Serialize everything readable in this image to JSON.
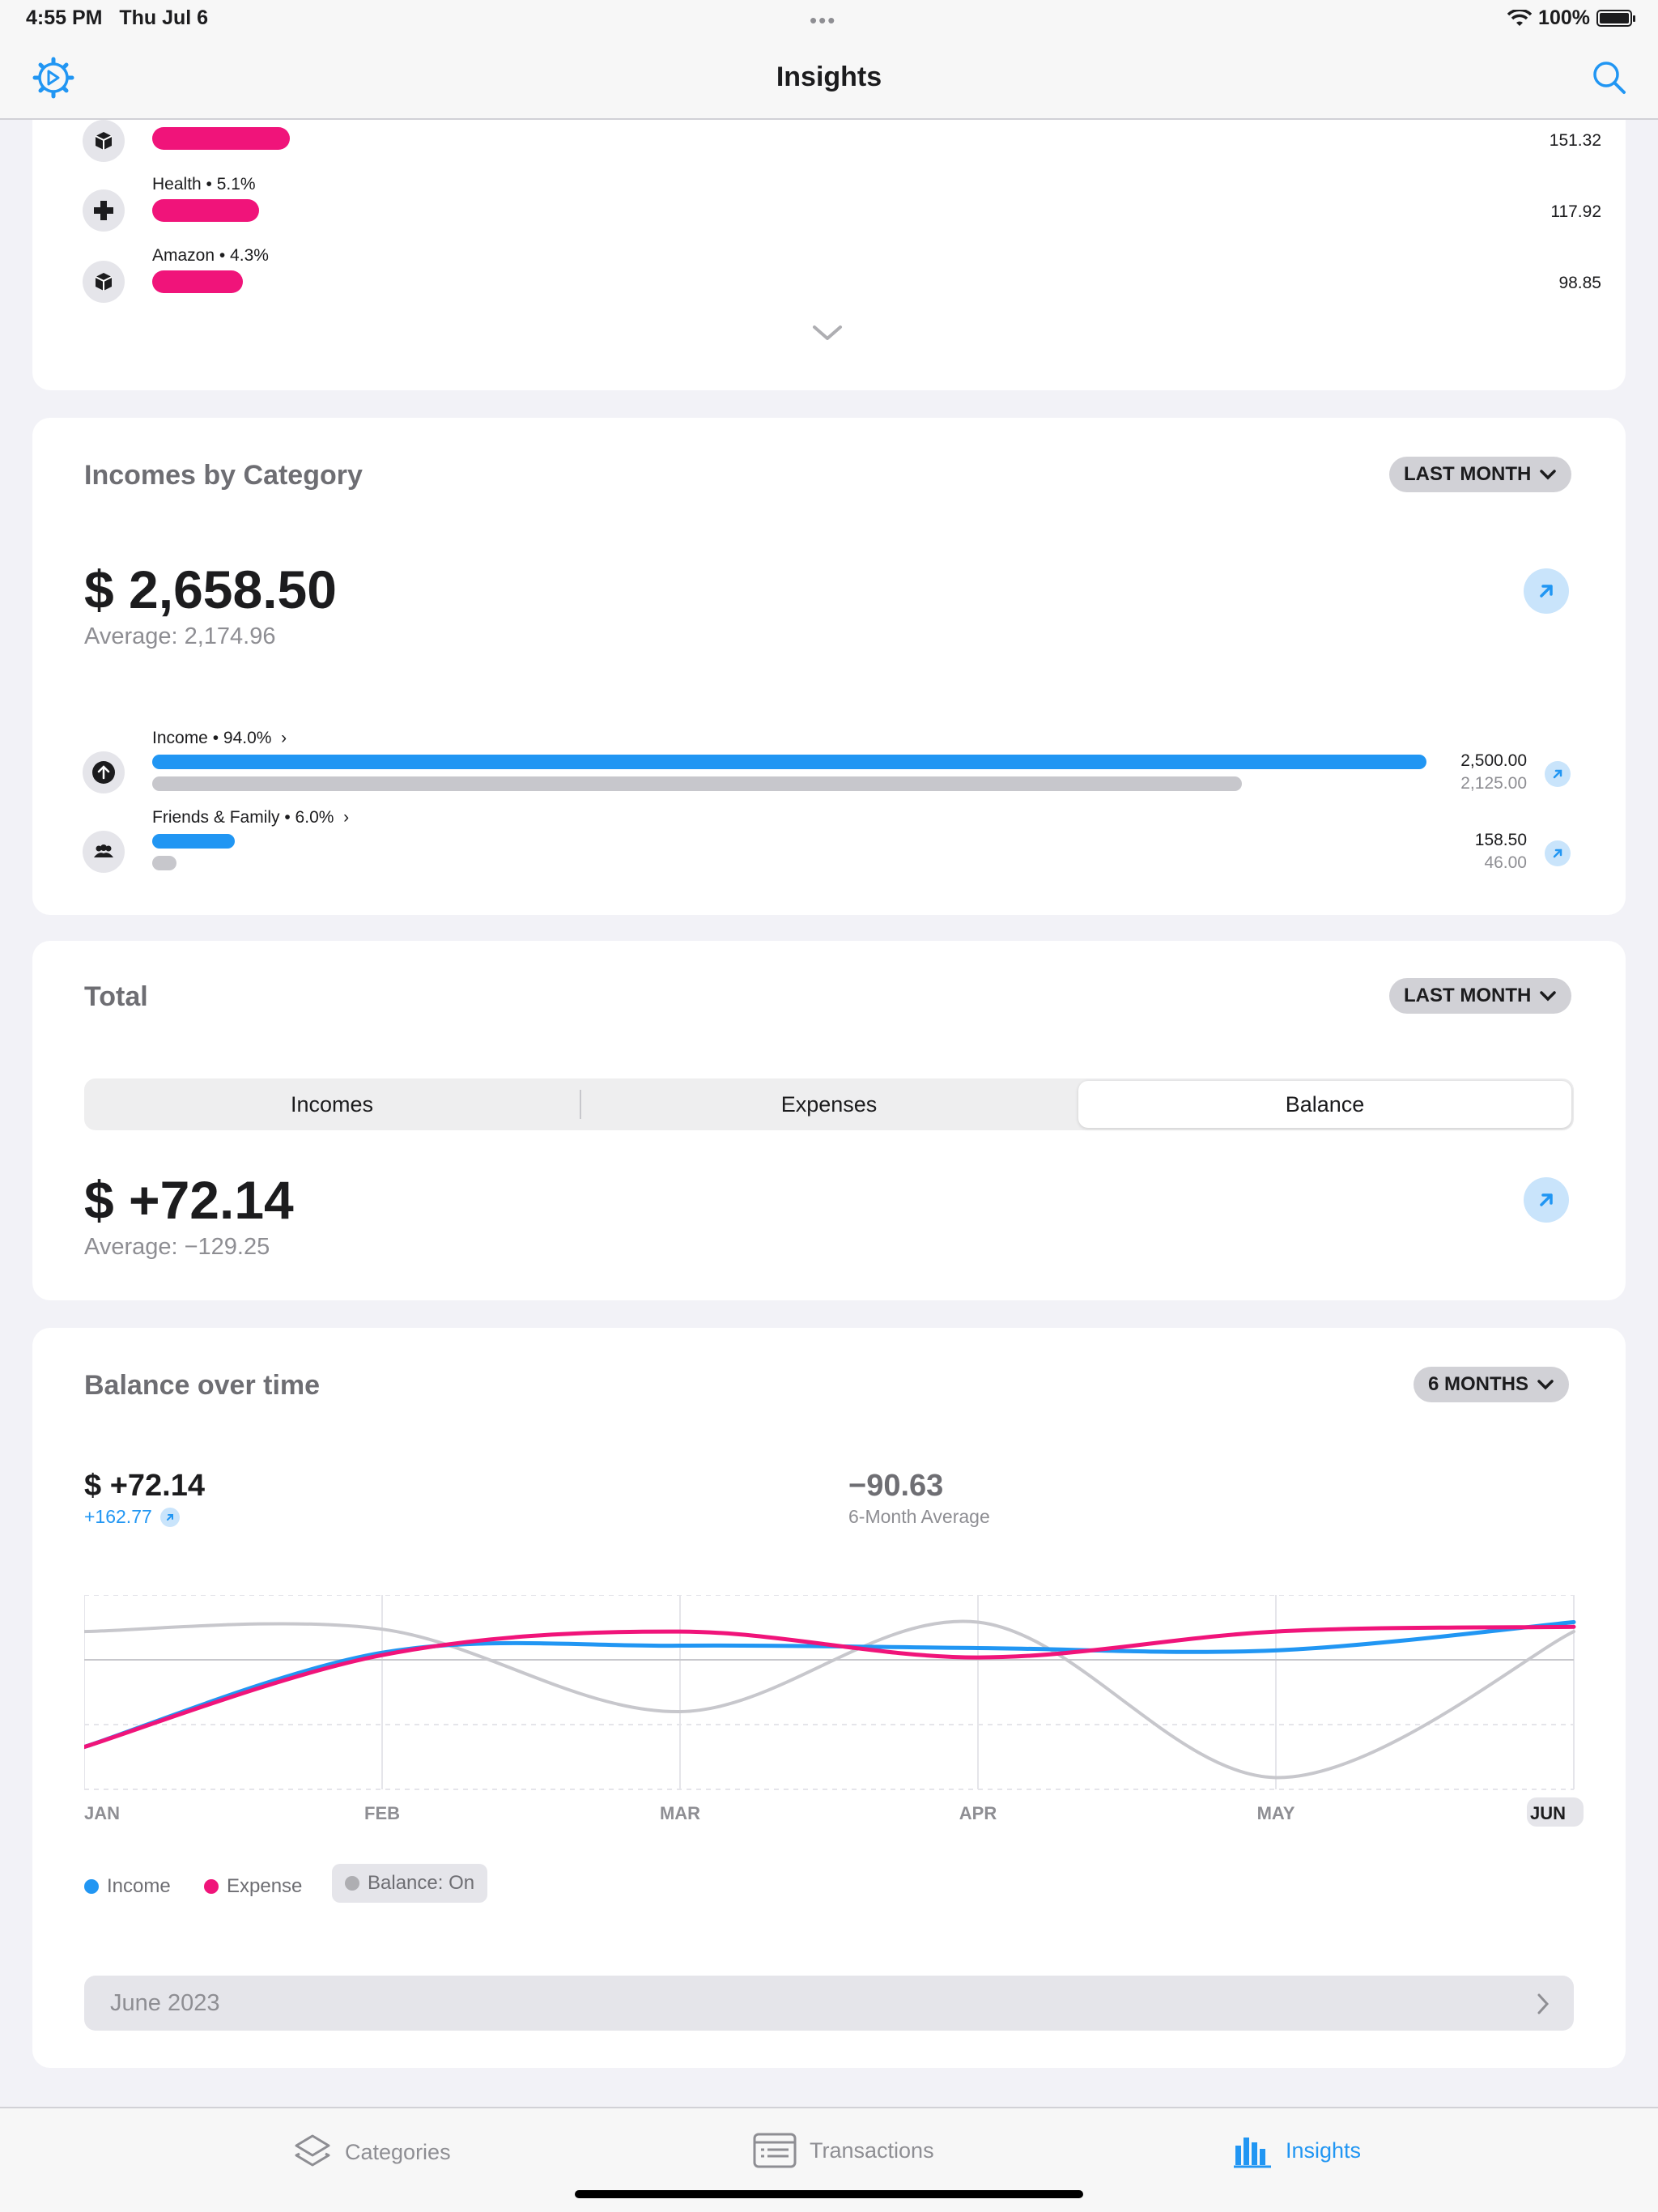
{
  "status_bar": {
    "time": "4:55 PM",
    "date": "Thu Jul 6",
    "dots": "•••",
    "battery": "100%"
  },
  "nav": {
    "title": "Insights",
    "left_icon": "settings-gear-icon",
    "right_icon": "search-icon"
  },
  "expense_list": {
    "rows": [
      {
        "label": "",
        "amount": "151.32",
        "icon": "package-icon",
        "fraction": 0.098
      },
      {
        "label": "Health • 5.1%",
        "amount": "117.92",
        "icon": "health-cross-icon",
        "fraction": 0.076
      },
      {
        "label": "Amazon • 4.3%",
        "amount": "98.85",
        "icon": "package-icon",
        "fraction": 0.064
      }
    ],
    "bar_color": "#f0147a"
  },
  "incomes": {
    "title": "Incomes by Category",
    "period": "LAST MONTH",
    "total": "$ 2,658.50",
    "average": "Average: 2,174.96",
    "rows": [
      {
        "label": "Income • 94.0%",
        "amount": "2,500.00",
        "previous": "2,125.00",
        "fraction": 0.94,
        "prev_fraction": 0.8,
        "icon": "arrow-up-circle-icon"
      },
      {
        "label": "Friends & Family • 6.0%",
        "amount": "158.50",
        "previous": "46.00",
        "fraction": 0.06,
        "prev_fraction": 0.018,
        "icon": "people-icon"
      }
    ]
  },
  "total": {
    "title": "Total",
    "period": "LAST MONTH",
    "segments": [
      "Incomes",
      "Expenses",
      "Balance"
    ],
    "active_segment": "Balance",
    "amount": "$ +72.14",
    "average": "Average: −129.25"
  },
  "balance": {
    "title": "Balance over time",
    "period": "6 MONTHS",
    "current": "$ +72.14",
    "change": "+162.77",
    "avg_value": "−90.63",
    "avg_label": "6-Month Average",
    "legend": {
      "income": "Income",
      "expense": "Expense",
      "balance": "Balance: On"
    },
    "month_button": "June 2023"
  },
  "chart_data": {
    "type": "line",
    "x": [
      "JAN",
      "FEB",
      "MAR",
      "APR",
      "MAY",
      "JUN"
    ],
    "highlighted_x": "JUN",
    "series": [
      {
        "name": "Income",
        "color": "#2196f3",
        "values": [
          -0.74,
          0.06,
          0.12,
          0.1,
          0.08,
          0.32
        ]
      },
      {
        "name": "Expense",
        "color": "#f0147a",
        "values": [
          -0.74,
          0.04,
          0.24,
          0.02,
          0.24,
          0.28
        ]
      },
      {
        "name": "Balance",
        "color": "#c7c7cc",
        "values": [
          0.24,
          0.26,
          -0.44,
          0.32,
          -1.0,
          0.24
        ]
      }
    ],
    "ylim": [
      -1.1,
      0.55
    ],
    "grid": true
  },
  "tabbar": {
    "tabs": [
      {
        "label": "Categories",
        "icon": "layers-icon"
      },
      {
        "label": "Transactions",
        "icon": "list-icon"
      },
      {
        "label": "Insights",
        "icon": "bar-chart-icon"
      }
    ],
    "active": "Insights"
  }
}
